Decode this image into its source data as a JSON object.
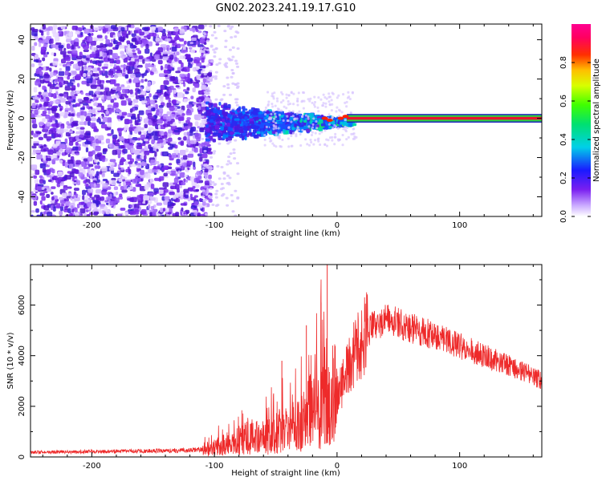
{
  "title": "GN02.2023.241.19.17.G10",
  "chart_data": [
    {
      "type": "heatmap",
      "xlabel": "Height of straight line (km)",
      "ylabel": "Frequency (Hz)",
      "xlim": [
        -250,
        167
      ],
      "ylim": [
        -50,
        48
      ],
      "xticks": [
        -200,
        -100,
        0,
        100
      ],
      "xtick_labels": [
        "-200",
        "-100",
        "0",
        "100"
      ],
      "yticks": [
        -40,
        -20,
        0,
        20,
        40
      ],
      "ytick_labels": [
        "-40",
        "-20",
        "0",
        "20",
        "40"
      ],
      "grid": false,
      "colorbar": {
        "label": "Normalized spectral amplitude",
        "range": [
          0,
          1
        ],
        "ticks": [
          0.0,
          0.2,
          0.4,
          0.6,
          0.8
        ],
        "tick_labels": [
          "0.0",
          "0.2",
          "0.4",
          "0.6",
          "0.8"
        ],
        "colormap": "rainbow (white–violet–blue–cyan–green–yellow–orange–red–magenta)"
      },
      "regions": [
        {
          "x_range": [
            -250,
            -105
          ],
          "freq_range": [
            -50,
            48
          ],
          "amplitude": "0.0–0.15 (broadband noise)"
        },
        {
          "x_range": [
            -105,
            10
          ],
          "freq_center": 0,
          "freq_halfwidth": [
            10,
            1
          ],
          "amplitude": "0.2–0.6 (signal emerging)"
        },
        {
          "x_range": [
            10,
            167
          ],
          "freq_center": 0,
          "freq_halfwidth": 1.5,
          "amplitude": "1.0 (strong carrier)"
        }
      ],
      "colors": {
        "noise": "#6a1ee6",
        "carrier": "#e8142d"
      }
    },
    {
      "type": "line",
      "xlabel": "Height of straight line (km)",
      "ylabel": "SNR (10 * v/v)",
      "xlim": [
        -250,
        167
      ],
      "ylim": [
        0,
        7600
      ],
      "xticks": [
        -200,
        -100,
        0,
        100
      ],
      "xtick_labels": [
        "-200",
        "-100",
        "0",
        "100"
      ],
      "yticks": [
        0,
        2000,
        4000,
        6000
      ],
      "ytick_labels": [
        "0",
        "2000",
        "4000",
        "6000"
      ],
      "grid": false,
      "series": [
        {
          "color": "#ee2a2a",
          "x": [
            -250,
            -200,
            -150,
            -120,
            -105,
            -95,
            -85,
            -70,
            -55,
            -40,
            -30,
            -20,
            -12,
            -7,
            0,
            10,
            20,
            30,
            40,
            50,
            60,
            80,
            100,
            120,
            140,
            160,
            167
          ],
          "y": [
            180,
            210,
            240,
            260,
            330,
            450,
            650,
            800,
            900,
            1100,
            1300,
            1900,
            2400,
            2300,
            2500,
            3600,
            4600,
            5200,
            5400,
            5300,
            5100,
            4800,
            4400,
            4000,
            3600,
            3200,
            3000
          ]
        }
      ],
      "spikes": [
        {
          "x": -8,
          "y": 7600
        },
        {
          "x": -13,
          "y": 6100
        },
        {
          "x": -25,
          "y": 5200
        },
        {
          "x": -45,
          "y": 3800
        }
      ]
    }
  ]
}
